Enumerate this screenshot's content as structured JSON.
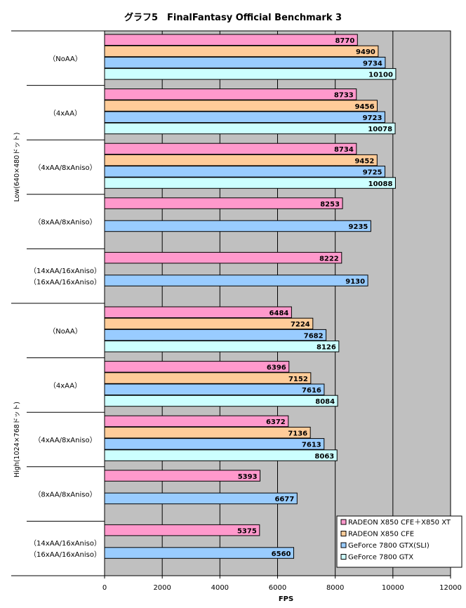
{
  "chart_data": {
    "type": "bar",
    "orientation": "horizontal",
    "title": "グラフ5　FinalFantasy Official Benchmark 3",
    "xlabel": "FPS",
    "xlim": [
      0,
      12000
    ],
    "xticks": [
      0,
      2000,
      4000,
      6000,
      8000,
      10000,
      12000
    ],
    "grid": true,
    "legend_position": "bottom-right",
    "series": [
      {
        "name": "RADEON X850 CFE＋X850 XT",
        "color": "#ff99cc"
      },
      {
        "name": "RADEON X850 CFE",
        "color": "#ffcc99"
      },
      {
        "name": "GeForce 7800 GTX(SLI)",
        "color": "#99ccff"
      },
      {
        "name": "GeForce 7800 GTX",
        "color": "#ccffff"
      }
    ],
    "groups": [
      {
        "name": "Low(640×480ドット)",
        "categories": [
          {
            "label": [
              "（NoAA）"
            ],
            "values": [
              8770,
              9490,
              9734,
              10100
            ]
          },
          {
            "label": [
              "（4xAA）"
            ],
            "values": [
              8733,
              9456,
              9723,
              10078
            ]
          },
          {
            "label": [
              "（4xAA/8xAniso）"
            ],
            "values": [
              8734,
              9452,
              9725,
              10088
            ]
          },
          {
            "label": [
              "（8xAA/8xAniso）"
            ],
            "values": [
              8253,
              null,
              9235,
              null
            ]
          },
          {
            "label": [
              "（14xAA/16xAniso）",
              "（16xAA/16xAniso）"
            ],
            "values": [
              8222,
              null,
              9130,
              null
            ]
          }
        ]
      },
      {
        "name": "High(1024×768ドット)",
        "categories": [
          {
            "label": [
              "（NoAA）"
            ],
            "values": [
              6484,
              7224,
              7682,
              8126
            ]
          },
          {
            "label": [
              "（4xAA）"
            ],
            "values": [
              6396,
              7152,
              7616,
              8084
            ]
          },
          {
            "label": [
              "（4xAA/8xAniso）"
            ],
            "values": [
              6372,
              7136,
              7613,
              8063
            ]
          },
          {
            "label": [
              "（8xAA/8xAniso）"
            ],
            "values": [
              5393,
              null,
              6677,
              null
            ]
          },
          {
            "label": [
              "（14xAA/16xAniso）",
              "（16xAA/16xAniso）"
            ],
            "values": [
              5375,
              null,
              6560,
              null
            ]
          }
        ]
      }
    ]
  }
}
